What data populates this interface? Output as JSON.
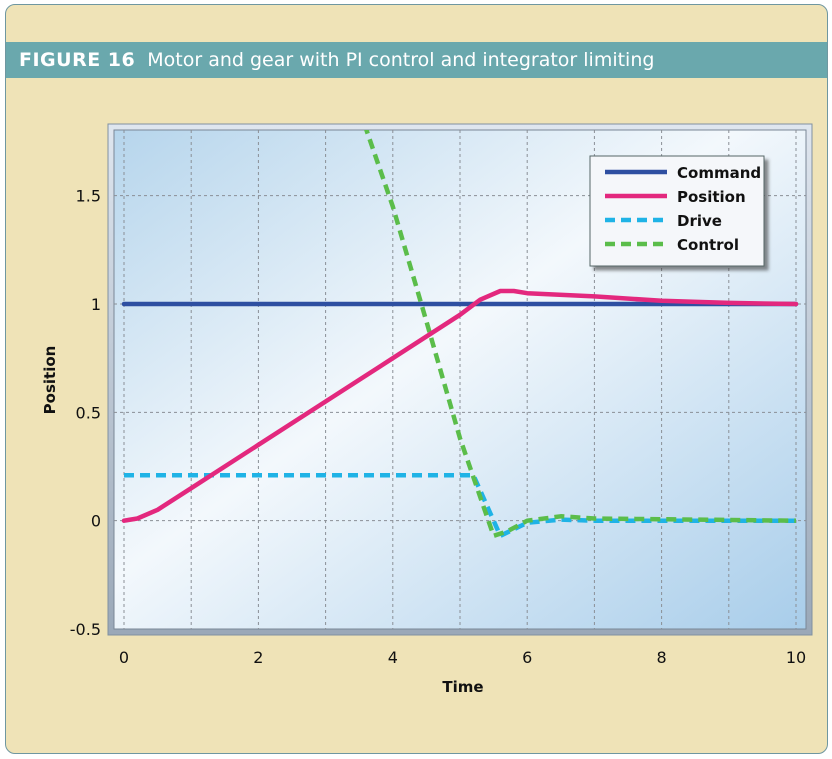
{
  "figure": {
    "label": "FIGURE 16",
    "caption": "Motor and gear with PI control and integrator limiting"
  },
  "colors": {
    "background": "#efe3b7",
    "header": "#6aa8ad",
    "border": "#6f97a0"
  },
  "chart_data": {
    "type": "line",
    "xlabel": "Time",
    "ylabel": "Position",
    "xlim": [
      0,
      10
    ],
    "ylim": [
      -0.5,
      1.9
    ],
    "xticks": [
      0,
      2,
      4,
      6,
      8,
      10
    ],
    "yticks": [
      -0.5,
      0,
      0.5,
      1,
      1.5
    ],
    "ytick_labels": [
      "-0.5",
      "0",
      "0.5",
      "1",
      "1.5"
    ],
    "grid": true,
    "legend_position": "top-right",
    "series": [
      {
        "name": "Command",
        "color": "#2e4fa1",
        "style": "solid",
        "x": [
          0,
          10
        ],
        "y": [
          1,
          1
        ]
      },
      {
        "name": "Position",
        "color": "#e3287e",
        "style": "solid",
        "x": [
          0,
          0.2,
          0.5,
          1,
          2,
          3,
          4,
          5,
          5.3,
          5.6,
          5.8,
          6,
          7,
          8,
          9,
          10
        ],
        "y": [
          0,
          0.01,
          0.05,
          0.15,
          0.35,
          0.55,
          0.75,
          0.95,
          1.02,
          1.06,
          1.06,
          1.05,
          1.035,
          1.015,
          1.005,
          1.0
        ]
      },
      {
        "name": "Drive",
        "color": "#1fb3e6",
        "style": "dashed",
        "x": [
          0,
          5.2,
          5.6,
          6.0,
          6.5,
          7,
          10
        ],
        "y": [
          0.21,
          0.21,
          -0.07,
          -0.01,
          0.005,
          0,
          0
        ]
      },
      {
        "name": "Control",
        "color": "#5bbd4a",
        "style": "dashed",
        "x": [
          3.5,
          4.0,
          4.5,
          5.0,
          5.5,
          5.7,
          6.0,
          6.5,
          7,
          10
        ],
        "y": [
          1.9,
          1.45,
          0.92,
          0.38,
          -0.07,
          -0.05,
          0.0,
          0.02,
          0.01,
          0
        ]
      }
    ]
  }
}
